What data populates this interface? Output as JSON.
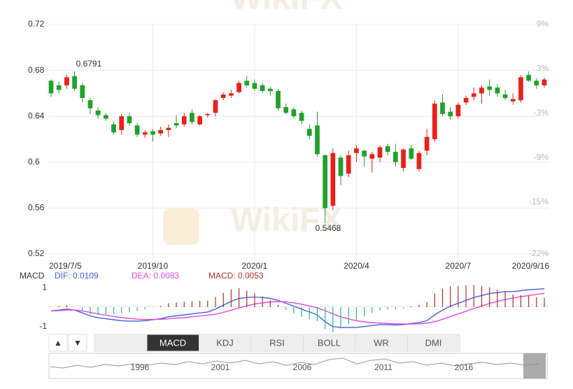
{
  "chart_data": [
    {
      "type": "candlestick",
      "categories": [
        "2019/7/5",
        null,
        null,
        null,
        null,
        null,
        null,
        null,
        null,
        null,
        null,
        null,
        null,
        "2019/10",
        null,
        null,
        null,
        null,
        null,
        null,
        null,
        null,
        null,
        null,
        null,
        null,
        "2020/1",
        null,
        null,
        null,
        null,
        null,
        null,
        null,
        null,
        null,
        null,
        null,
        null,
        "2020/4",
        null,
        null,
        null,
        null,
        null,
        null,
        null,
        null,
        null,
        null,
        null,
        null,
        "2020/7",
        null,
        null,
        null,
        null,
        null,
        null,
        null,
        null,
        null,
        null,
        "2020/9/16"
      ],
      "open": [
        0.671,
        0.667,
        0.667,
        0.675,
        0.667,
        0.654,
        0.645,
        0.641,
        0.633,
        0.628,
        0.64,
        0.632,
        0.624,
        0.627,
        0.625,
        0.628,
        0.634,
        0.633,
        0.643,
        0.633,
        0.641,
        0.643,
        0.656,
        0.658,
        0.661,
        0.671,
        0.669,
        0.667,
        0.664,
        0.662,
        0.648,
        0.646,
        0.643,
        0.629,
        0.632,
        0.606,
        0.562,
        0.604,
        0.59,
        0.608,
        0.61,
        0.603,
        0.604,
        0.614,
        0.609,
        0.595,
        0.612,
        0.594,
        0.61,
        0.62,
        0.652,
        0.644,
        0.64,
        0.652,
        0.657,
        0.66,
        0.666,
        0.665,
        0.659,
        0.653,
        0.654,
        0.676,
        0.671,
        0.667
      ],
      "high": [
        0.672,
        0.67,
        0.676,
        0.6791,
        0.669,
        0.656,
        0.648,
        0.643,
        0.635,
        0.642,
        0.643,
        0.634,
        0.628,
        0.629,
        0.631,
        0.633,
        0.641,
        0.643,
        0.646,
        0.641,
        0.643,
        0.655,
        0.661,
        0.663,
        0.671,
        0.675,
        0.672,
        0.669,
        0.666,
        0.664,
        0.651,
        0.648,
        0.645,
        0.633,
        0.644,
        0.607,
        0.612,
        0.606,
        0.61,
        0.615,
        0.611,
        0.609,
        0.615,
        0.616,
        0.616,
        0.612,
        0.615,
        0.61,
        0.629,
        0.654,
        0.659,
        0.648,
        0.652,
        0.658,
        0.665,
        0.667,
        0.672,
        0.668,
        0.663,
        0.66,
        0.676,
        0.679,
        0.673,
        0.674
      ],
      "low": [
        0.657,
        0.66,
        0.664,
        0.662,
        0.652,
        0.642,
        0.638,
        0.636,
        0.624,
        0.624,
        0.632,
        0.622,
        0.621,
        0.618,
        0.623,
        0.622,
        0.63,
        0.631,
        0.633,
        0.632,
        0.639,
        0.64,
        0.654,
        0.656,
        0.66,
        0.665,
        0.662,
        0.66,
        0.658,
        0.645,
        0.642,
        0.638,
        0.633,
        0.62,
        0.605,
        0.5468,
        0.558,
        0.58,
        0.587,
        0.6,
        0.596,
        0.591,
        0.6,
        0.606,
        0.596,
        0.592,
        0.602,
        0.592,
        0.606,
        0.618,
        0.64,
        0.637,
        0.638,
        0.65,
        0.654,
        0.651,
        0.658,
        0.657,
        0.654,
        0.65,
        0.652,
        0.67,
        0.664,
        0.665
      ],
      "close": [
        0.66,
        0.663,
        0.674,
        0.664,
        0.656,
        0.647,
        0.641,
        0.638,
        0.626,
        0.64,
        0.634,
        0.624,
        0.626,
        0.624,
        0.628,
        0.63,
        0.632,
        0.64,
        0.635,
        0.64,
        0.642,
        0.654,
        0.659,
        0.66,
        0.669,
        0.667,
        0.664,
        0.662,
        0.662,
        0.647,
        0.643,
        0.64,
        0.636,
        0.623,
        0.607,
        0.56,
        0.608,
        0.588,
        0.606,
        0.612,
        0.605,
        0.607,
        0.613,
        0.609,
        0.6,
        0.611,
        0.603,
        0.608,
        0.622,
        0.651,
        0.642,
        0.64,
        0.65,
        0.656,
        0.66,
        0.665,
        0.663,
        0.66,
        0.656,
        0.655,
        0.674,
        0.671,
        0.667,
        0.672
      ],
      "up_color": "#e8211c",
      "down_color": "#1fa12a",
      "ylim": [
        0.52,
        0.72
      ],
      "yticks": [
        0.52,
        0.56,
        0.6,
        0.64,
        0.68,
        0.72
      ],
      "y2lim": [
        -22,
        9
      ],
      "y2ticks": [
        {
          "value": 9,
          "label": "9%"
        },
        {
          "value": 3,
          "label": "3%"
        },
        {
          "value": -3,
          "label": "-3%"
        },
        {
          "value": -9,
          "label": "-9%"
        },
        {
          "value": -15,
          "label": "-15%"
        },
        {
          "value": -22,
          "label": "-22%"
        }
      ],
      "grid": true,
      "annotations": [
        {
          "label": "0.6791",
          "value": 0.6791
        },
        {
          "label": "0.5468",
          "value": 0.5468
        }
      ]
    },
    {
      "type": "macd",
      "title": "MACD",
      "ylim": [
        -1.3,
        1.3
      ],
      "yticks": [
        1,
        -1
      ],
      "series": [
        {
          "name": "DIF: 0.0109",
          "kind": "line",
          "color": "#4a5fe0",
          "values": [
            -0.2,
            -0.15,
            -0.1,
            -0.15,
            -0.3,
            -0.45,
            -0.55,
            -0.6,
            -0.65,
            -0.7,
            -0.72,
            -0.72,
            -0.7,
            -0.65,
            -0.6,
            -0.5,
            -0.45,
            -0.4,
            -0.35,
            -0.3,
            -0.25,
            -0.1,
            0.1,
            0.3,
            0.45,
            0.5,
            0.52,
            0.5,
            0.45,
            0.35,
            0.2,
            0.05,
            -0.1,
            -0.25,
            -0.4,
            -0.75,
            -1.0,
            -1.05,
            -1.05,
            -1.05,
            -1.0,
            -0.95,
            -0.9,
            -0.9,
            -0.92,
            -0.9,
            -0.85,
            -0.8,
            -0.7,
            -0.4,
            -0.15,
            0.05,
            0.2,
            0.35,
            0.5,
            0.6,
            0.7,
            0.75,
            0.8,
            0.8,
            0.85,
            0.9,
            0.92,
            0.95
          ]
        },
        {
          "name": "DEA: 0.0083",
          "kind": "line",
          "color": "#e04ce0",
          "values": [
            -0.2,
            -0.18,
            -0.15,
            -0.15,
            -0.2,
            -0.27,
            -0.35,
            -0.42,
            -0.48,
            -0.54,
            -0.58,
            -0.62,
            -0.64,
            -0.64,
            -0.63,
            -0.6,
            -0.57,
            -0.54,
            -0.5,
            -0.46,
            -0.42,
            -0.36,
            -0.27,
            -0.16,
            -0.04,
            0.07,
            0.16,
            0.22,
            0.27,
            0.29,
            0.27,
            0.22,
            0.15,
            0.06,
            -0.04,
            -0.18,
            -0.35,
            -0.5,
            -0.61,
            -0.7,
            -0.76,
            -0.8,
            -0.82,
            -0.84,
            -0.86,
            -0.87,
            -0.87,
            -0.86,
            -0.83,
            -0.75,
            -0.63,
            -0.49,
            -0.35,
            -0.21,
            -0.07,
            0.06,
            0.19,
            0.3,
            0.39,
            0.47,
            0.54,
            0.6,
            0.66,
            0.71
          ]
        },
        {
          "name": "MACD: 0.0053",
          "kind": "bar",
          "color": "#b0302a",
          "negative_color": "#2cb59a",
          "values": [
            0,
            0.06,
            0.1,
            0,
            -0.2,
            -0.36,
            -0.4,
            -0.36,
            -0.34,
            -0.32,
            -0.28,
            -0.2,
            -0.12,
            -0.02,
            0.06,
            0.2,
            0.24,
            0.28,
            0.3,
            0.32,
            0.34,
            0.52,
            0.74,
            0.92,
            0.98,
            0.86,
            0.72,
            0.56,
            0.36,
            0.12,
            -0.14,
            -0.34,
            -0.5,
            -0.62,
            -0.72,
            -1.14,
            -1.3,
            -1.1,
            -0.88,
            -0.7,
            -0.48,
            -0.3,
            -0.16,
            -0.12,
            -0.12,
            -0.06,
            0.04,
            0.12,
            0.26,
            0.7,
            0.96,
            1.08,
            1.1,
            1.12,
            1.14,
            1.08,
            1.02,
            0.9,
            0.82,
            0.66,
            0.62,
            0.6,
            0.52,
            0.48
          ]
        }
      ]
    }
  ],
  "toolbar": {
    "buttons": [
      "▲",
      "▼"
    ],
    "tabs": [
      "MACD",
      "KDJ",
      "RSI",
      "BOLL",
      "WR",
      "DMI"
    ],
    "active_tab": 0
  },
  "navigator": {
    "labels": [
      "1996",
      "2001",
      "2006",
      "2011",
      "2016"
    ]
  },
  "watermark": "WikiFX"
}
